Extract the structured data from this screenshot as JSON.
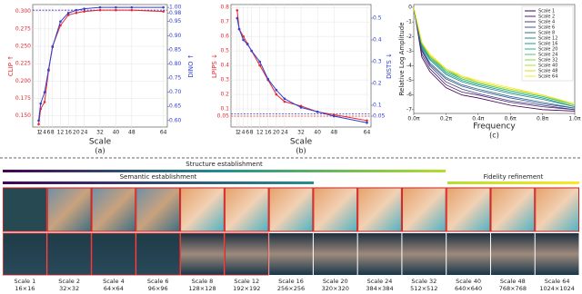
{
  "chart_data": [
    {
      "type": "line",
      "caption": "(a)",
      "xlabel": "Scale",
      "ylabel": "CLIP ↑",
      "y2label": "DINO ↑",
      "grid": true,
      "markers": true,
      "x": [
        1,
        2,
        4,
        6,
        8,
        12,
        16,
        20,
        24,
        32,
        40,
        48,
        64
      ],
      "xlim": [
        -2,
        66
      ],
      "xticks": [
        1,
        2,
        4,
        6,
        8,
        12,
        16,
        20,
        24,
        32,
        40,
        48,
        64
      ],
      "ylim": [
        0.134,
        0.31
      ],
      "yticks": [
        {
          "value": 0.15,
          "label": "0.150"
        },
        {
          "value": 0.175,
          "label": "0.175"
        },
        {
          "value": 0.2,
          "label": "0.200"
        },
        {
          "value": 0.225,
          "label": "0.225"
        },
        {
          "value": 0.25,
          "label": "0.250"
        },
        {
          "value": 0.275,
          "label": "0.275"
        },
        {
          "value": 0.3,
          "label": "0.300"
        }
      ],
      "y2lim": [
        0.577,
        1.01
      ],
      "y2ticks": [
        {
          "value": 0.6,
          "label": "0.60"
        },
        {
          "value": 0.65,
          "label": "0.65"
        },
        {
          "value": 0.7,
          "label": "0.70"
        },
        {
          "value": 0.75,
          "label": "0.75"
        },
        {
          "value": 0.8,
          "label": "0.80"
        },
        {
          "value": 0.85,
          "label": "0.85"
        },
        {
          "value": 0.9,
          "label": "0.90"
        },
        {
          "value": 0.95,
          "label": "0.95"
        },
        {
          "value": 0.98,
          "label": "0.98"
        },
        {
          "value": 1.0,
          "label": "1.00"
        }
      ],
      "series": [
        {
          "color": "#e8262b",
          "values": [
            0.138,
            0.16,
            0.17,
            0.215,
            0.25,
            0.28,
            0.295,
            0.298,
            0.3,
            0.302,
            0.302,
            0.302,
            0.3
          ]
        },
        {
          "color": "#2f3fd0",
          "axis": "y2",
          "values": [
            0.6,
            0.66,
            0.7,
            0.78,
            0.86,
            0.95,
            0.98,
            0.99,
            0.995,
            1.0,
            1.0,
            1.0,
            1.0
          ]
        }
      ],
      "reference_lines": [
        {
          "value": 0.302,
          "color": "#e8262b"
        },
        {
          "value": 0.99,
          "color": "#2f3fd0",
          "axis": "y2"
        }
      ]
    },
    {
      "type": "line",
      "caption": "(b)",
      "xlabel": "Scale",
      "ylabel": "LPIPS ↓",
      "y2label": "DISTS ↓",
      "grid": true,
      "markers": true,
      "x": [
        1,
        2,
        4,
        6,
        8,
        12,
        16,
        20,
        24,
        32,
        40,
        48,
        64
      ],
      "xlim": [
        -2,
        66
      ],
      "xticks": [
        1,
        2,
        4,
        6,
        8,
        12,
        16,
        20,
        24,
        32,
        40,
        48,
        64
      ],
      "ylim": [
        -0.025,
        0.82
      ],
      "yticks": [
        0.05,
        0.1,
        0.2,
        0.3,
        0.4,
        0.5,
        0.6,
        0.7,
        0.8
      ],
      "y2lim": [
        0,
        0.5625
      ],
      "y2ticks": [
        0.05,
        0.1,
        0.2,
        0.3,
        0.4,
        0.5
      ],
      "series": [
        {
          "color": "#e8262b",
          "values": [
            0.78,
            0.65,
            0.6,
            0.55,
            0.5,
            0.4,
            0.3,
            0.2,
            0.15,
            0.12,
            0.08,
            0.06,
            0.02
          ]
        },
        {
          "color": "#2f3fd0",
          "axis": "y2",
          "values": [
            0.5,
            0.45,
            0.4,
            0.38,
            0.35,
            0.3,
            0.22,
            0.17,
            0.13,
            0.09,
            0.07,
            0.05,
            0.02
          ]
        }
      ],
      "reference_lines": [
        {
          "value": 0.05,
          "color": "#e8262b"
        },
        {
          "value": 0.06,
          "color": "#2f3fd0",
          "axis": "y2"
        }
      ]
    },
    {
      "type": "line",
      "caption": "(c)",
      "xlabel": "Frequency",
      "ylabel": "Relative Log Amplitude",
      "grid": false,
      "markers": false,
      "legend": "upper right",
      "x": [
        0,
        0.05,
        0.1,
        0.2,
        0.3,
        0.4,
        0.6,
        0.8,
        1.0
      ],
      "xlim": [
        0,
        1
      ],
      "xticks": [
        {
          "value": 0,
          "label": "0.0π"
        },
        {
          "value": 0.2,
          "label": "0.2π"
        },
        {
          "value": 0.4,
          "label": "0.4π"
        },
        {
          "value": 0.6,
          "label": "0.6π"
        },
        {
          "value": 0.8,
          "label": "0.8π"
        },
        {
          "value": 1.0,
          "label": "1.0π"
        }
      ],
      "ylim": [
        -7.26,
        0.19
      ],
      "yticks": [
        0,
        -1,
        -2,
        -3,
        -4,
        -5,
        -6,
        -7
      ],
      "series": [
        {
          "name": "Scale 1",
          "color": "#440154",
          "values": [
            0,
            -3.4,
            -4.4,
            -5.5,
            -6.0,
            -6.2,
            -6.7,
            -7.0,
            -7.1
          ]
        },
        {
          "name": "Scale 2",
          "color": "#482173",
          "values": [
            0,
            -3.2,
            -4.2,
            -5.3,
            -5.8,
            -6.0,
            -6.5,
            -6.8,
            -7.0
          ]
        },
        {
          "name": "Scale 4",
          "color": "#433e85",
          "values": [
            0,
            -3.0,
            -4.0,
            -5.1,
            -5.6,
            -5.9,
            -6.4,
            -6.7,
            -7.0
          ]
        },
        {
          "name": "Scale 6",
          "color": "#38588c",
          "values": [
            0,
            -2.9,
            -3.9,
            -4.9,
            -5.4,
            -5.7,
            -6.2,
            -6.6,
            -6.9
          ]
        },
        {
          "name": "Scale 8",
          "color": "#2d708e",
          "values": [
            0,
            -2.8,
            -3.8,
            -4.8,
            -5.3,
            -5.6,
            -6.1,
            -6.5,
            -6.9
          ]
        },
        {
          "name": "Scale 12",
          "color": "#25858e",
          "values": [
            0,
            -2.7,
            -3.6,
            -4.6,
            -5.1,
            -5.4,
            -5.9,
            -6.3,
            -6.8
          ]
        },
        {
          "name": "Scale 16",
          "color": "#1e9b8a",
          "values": [
            0,
            -2.6,
            -3.5,
            -4.5,
            -5.0,
            -5.3,
            -5.8,
            -6.2,
            -6.8
          ]
        },
        {
          "name": "Scale 20",
          "color": "#2ab07f",
          "values": [
            0,
            -2.5,
            -3.4,
            -4.4,
            -4.9,
            -5.2,
            -5.7,
            -6.1,
            -6.7
          ]
        },
        {
          "name": "Scale 24",
          "color": "#52c569",
          "values": [
            0,
            -2.5,
            -3.4,
            -4.3,
            -4.9,
            -5.2,
            -5.7,
            -6.1,
            -6.7
          ]
        },
        {
          "name": "Scale 32",
          "color": "#86d549",
          "values": [
            0,
            -2.4,
            -3.3,
            -4.3,
            -4.8,
            -5.1,
            -5.6,
            -6.0,
            -6.7
          ]
        },
        {
          "name": "Scale 40",
          "color": "#b0dd2f",
          "values": [
            0,
            -2.4,
            -3.3,
            -4.2,
            -4.8,
            -5.1,
            -5.6,
            -6.0,
            -6.6
          ]
        },
        {
          "name": "Scale 48",
          "color": "#d8e219",
          "values": [
            0,
            -2.4,
            -3.3,
            -4.2,
            -4.7,
            -5.1,
            -5.6,
            -6.0,
            -6.6
          ]
        },
        {
          "name": "Scale 64",
          "color": "#fde725",
          "values": [
            0,
            -2.4,
            -3.2,
            -4.2,
            -4.7,
            -5.0,
            -5.5,
            -6.0,
            -6.6
          ]
        }
      ]
    }
  ],
  "stages": [
    {
      "label": "Structure establishment"
    },
    {
      "label": "Semantic establishment"
    },
    {
      "label": "Fidelity refinement"
    }
  ],
  "scales": [
    {
      "label": "Scale 1",
      "size": "16×16"
    },
    {
      "label": "Scale 2",
      "size": "32×32"
    },
    {
      "label": "Scale 4",
      "size": "64×64"
    },
    {
      "label": "Scale 6",
      "size": "96×96"
    },
    {
      "label": "Scale 8",
      "size": "128×128"
    },
    {
      "label": "Scale 12",
      "size": "192×192"
    },
    {
      "label": "Scale 16",
      "size": "256×256"
    },
    {
      "label": "Scale 20",
      "size": "320×320"
    },
    {
      "label": "Scale 24",
      "size": "384×384"
    },
    {
      "label": "Scale 32",
      "size": "512×512"
    },
    {
      "label": "Scale 40",
      "size": "640×640"
    },
    {
      "label": "Scale 48",
      "size": "768×768"
    },
    {
      "label": "Scale 64",
      "size": "1024×1024"
    }
  ]
}
